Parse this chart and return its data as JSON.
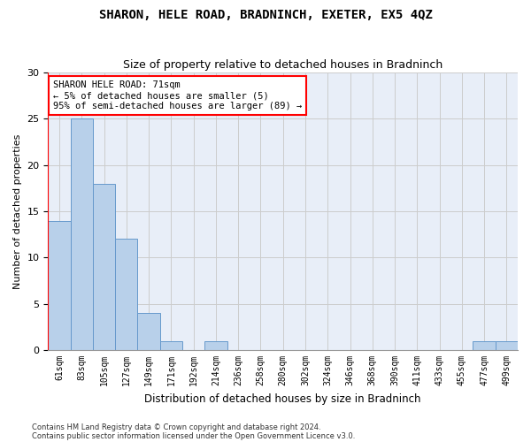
{
  "title": "SHARON, HELE ROAD, BRADNINCH, EXETER, EX5 4QZ",
  "subtitle": "Size of property relative to detached houses in Bradninch",
  "xlabel": "Distribution of detached houses by size in Bradninch",
  "ylabel": "Number of detached properties",
  "categories": [
    "61sqm",
    "83sqm",
    "105sqm",
    "127sqm",
    "149sqm",
    "171sqm",
    "192sqm",
    "214sqm",
    "236sqm",
    "258sqm",
    "280sqm",
    "302sqm",
    "324sqm",
    "346sqm",
    "368sqm",
    "390sqm",
    "411sqm",
    "433sqm",
    "455sqm",
    "477sqm",
    "499sqm"
  ],
  "values": [
    14,
    25,
    18,
    12,
    4,
    1,
    0,
    1,
    0,
    0,
    0,
    0,
    0,
    0,
    0,
    0,
    0,
    0,
    0,
    1,
    1
  ],
  "bar_color": "#b8d0ea",
  "bar_edge_color": "#6699cc",
  "annotation_box_text": "SHARON HELE ROAD: 71sqm\n← 5% of detached houses are smaller (5)\n95% of semi-detached houses are larger (89) →",
  "ylim": [
    0,
    30
  ],
  "yticks": [
    0,
    5,
    10,
    15,
    20,
    25,
    30
  ],
  "grid_color": "#cccccc",
  "bg_color": "#e8eef8",
  "footer_line1": "Contains HM Land Registry data © Crown copyright and database right 2024.",
  "footer_line2": "Contains public sector information licensed under the Open Government Licence v3.0.",
  "title_fontsize": 10,
  "subtitle_fontsize": 9,
  "red_line_x": -0.5
}
